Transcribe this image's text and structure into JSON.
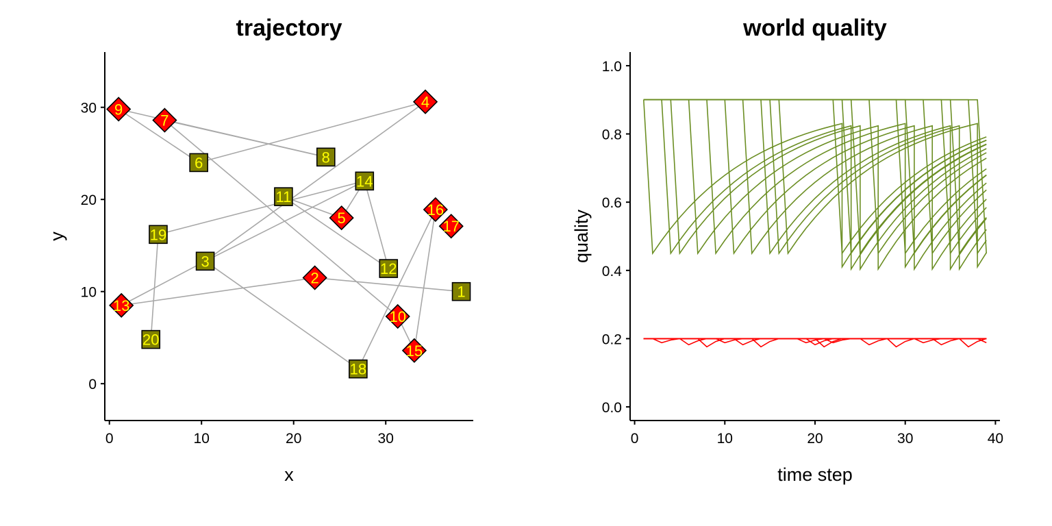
{
  "chart_data": [
    {
      "type": "scatter",
      "title": "trajectory",
      "xlabel": "x",
      "ylabel": "y",
      "xlim": [
        -0.5,
        39.5
      ],
      "ylim": [
        -4,
        36
      ],
      "xticks": [
        0,
        10,
        20,
        30
      ],
      "yticks": [
        0,
        10,
        20,
        30
      ],
      "grid": false,
      "colors": {
        "bad": "#ff0000",
        "good": "#808000",
        "label": "#ffff00",
        "path": "#a8a8a8"
      },
      "points": [
        {
          "id": "1",
          "x": 38.2,
          "y": 10.0,
          "type": "good"
        },
        {
          "id": "2",
          "x": 22.3,
          "y": 11.5,
          "type": "bad"
        },
        {
          "id": "3",
          "x": 10.4,
          "y": 13.3,
          "type": "good"
        },
        {
          "id": "4",
          "x": 34.3,
          "y": 30.6,
          "type": "bad"
        },
        {
          "id": "5",
          "x": 25.2,
          "y": 18.0,
          "type": "bad"
        },
        {
          "id": "6",
          "x": 9.7,
          "y": 24.0,
          "type": "good"
        },
        {
          "id": "7",
          "x": 6.0,
          "y": 28.6,
          "type": "bad"
        },
        {
          "id": "8",
          "x": 23.5,
          "y": 24.6,
          "type": "good"
        },
        {
          "id": "9",
          "x": 1.0,
          "y": 29.8,
          "type": "bad"
        },
        {
          "id": "10",
          "x": 31.3,
          "y": 7.3,
          "type": "bad"
        },
        {
          "id": "11",
          "x": 18.9,
          "y": 20.3,
          "type": "good"
        },
        {
          "id": "12",
          "x": 30.3,
          "y": 12.5,
          "type": "good"
        },
        {
          "id": "13",
          "x": 1.3,
          "y": 8.5,
          "type": "bad"
        },
        {
          "id": "14",
          "x": 27.7,
          "y": 22.0,
          "type": "good"
        },
        {
          "id": "15",
          "x": 33.1,
          "y": 3.6,
          "type": "bad"
        },
        {
          "id": "16",
          "x": 35.4,
          "y": 18.9,
          "type": "bad"
        },
        {
          "id": "17",
          "x": 37.1,
          "y": 17.1,
          "type": "bad"
        },
        {
          "id": "18",
          "x": 27.0,
          "y": 1.6,
          "type": "good"
        },
        {
          "id": "19",
          "x": 5.3,
          "y": 16.2,
          "type": "good"
        },
        {
          "id": "20",
          "x": 4.5,
          "y": 4.8,
          "type": "good"
        }
      ],
      "path": [
        "1",
        "2",
        "13",
        "3",
        "4",
        "6",
        "9",
        "8",
        "7",
        "10",
        "15",
        "16",
        "18",
        "3",
        "14",
        "12",
        "11",
        "5",
        "14",
        "19",
        "20"
      ]
    },
    {
      "type": "line",
      "title": "world quality",
      "xlabel": "time step",
      "ylabel": "quality",
      "xlim": [
        -0.5,
        40.5
      ],
      "ylim": [
        -0.04,
        1.04
      ],
      "xticks": [
        0,
        10,
        20,
        30,
        40
      ],
      "yticks": [
        0.0,
        0.2,
        0.4,
        0.6,
        0.8,
        1.0
      ],
      "grid": false,
      "colors": {
        "good": "#6b8e23",
        "bad": "#ff0000"
      },
      "good_visit_steps": [
        2,
        4,
        5,
        7,
        9,
        11,
        13,
        15,
        16,
        17,
        23,
        24,
        25,
        27,
        30,
        31,
        33,
        35,
        36,
        38,
        39
      ],
      "good_peak": 0.9,
      "good_drop": 0.45,
      "bad_dips": [
        3,
        6,
        8,
        10,
        12,
        14,
        19,
        20,
        21,
        22,
        26,
        29,
        32,
        34,
        37,
        39
      ],
      "bad_level": 0.2
    }
  ]
}
